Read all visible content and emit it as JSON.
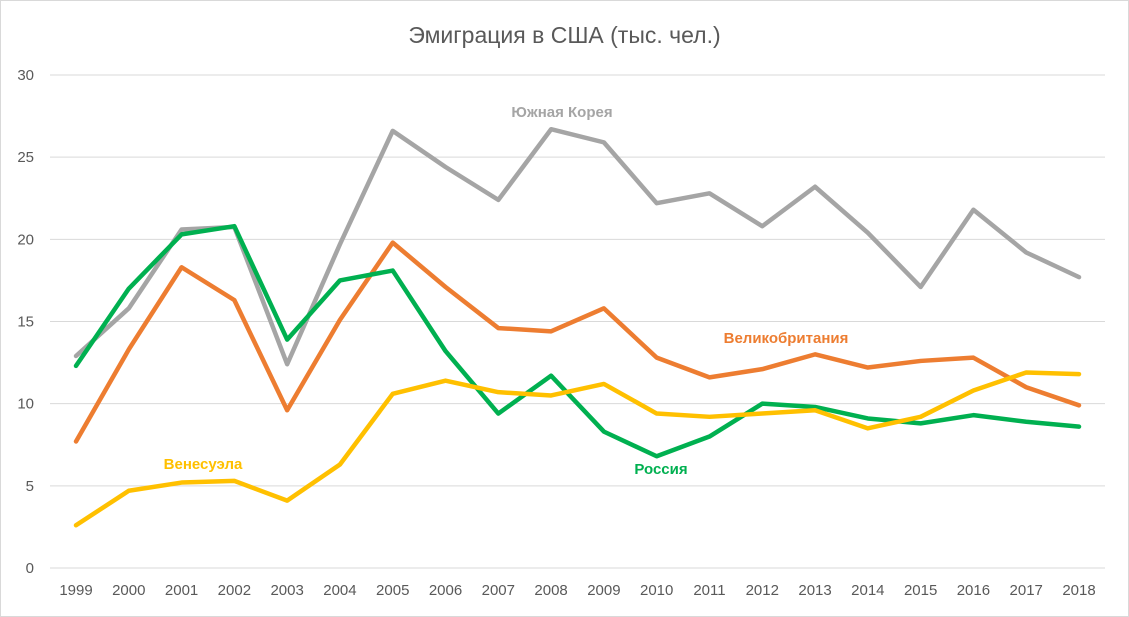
{
  "chart_data": {
    "type": "line",
    "title": "Эмиграция в США (тыс. чел.)",
    "xlabel": "",
    "ylabel": "",
    "ylim": [
      0,
      30
    ],
    "yticks": [
      0,
      5,
      10,
      15,
      20,
      25,
      30
    ],
    "grid": true,
    "x": [
      "1999",
      "2000",
      "2001",
      "2002",
      "2003",
      "2004",
      "2005",
      "2006",
      "2007",
      "2008",
      "2009",
      "2010",
      "2011",
      "2012",
      "2013",
      "2014",
      "2015",
      "2016",
      "2017",
      "2018"
    ],
    "series": [
      {
        "name": "Южная Корея",
        "color": "#a5a5a5",
        "values": [
          12.9,
          15.8,
          20.6,
          20.75,
          12.4,
          19.7,
          26.6,
          24.4,
          22.4,
          26.7,
          25.9,
          22.2,
          22.8,
          20.8,
          23.2,
          20.4,
          17.1,
          21.8,
          19.2,
          17.7
        ]
      },
      {
        "name": "Великобритания",
        "color": "#ed7d31",
        "values": [
          7.7,
          13.3,
          18.3,
          16.3,
          9.6,
          15.1,
          19.8,
          17.1,
          14.6,
          14.4,
          15.8,
          12.8,
          11.6,
          12.1,
          13.0,
          12.2,
          12.6,
          12.8,
          11.0,
          9.9
        ]
      },
      {
        "name": "Россия",
        "color": "#00b050",
        "values": [
          12.3,
          17.0,
          20.3,
          20.8,
          13.9,
          17.5,
          18.1,
          13.2,
          9.4,
          11.7,
          8.3,
          6.8,
          8.0,
          10.0,
          9.8,
          9.1,
          8.8,
          9.3,
          8.9,
          8.6
        ]
      },
      {
        "name": "Венесуэла",
        "color": "#ffc000",
        "values": [
          2.6,
          4.7,
          5.2,
          5.3,
          4.1,
          6.3,
          10.6,
          11.4,
          10.7,
          10.5,
          11.2,
          9.4,
          9.2,
          9.4,
          9.6,
          8.5,
          9.2,
          10.8,
          11.9,
          11.8
        ]
      }
    ]
  }
}
